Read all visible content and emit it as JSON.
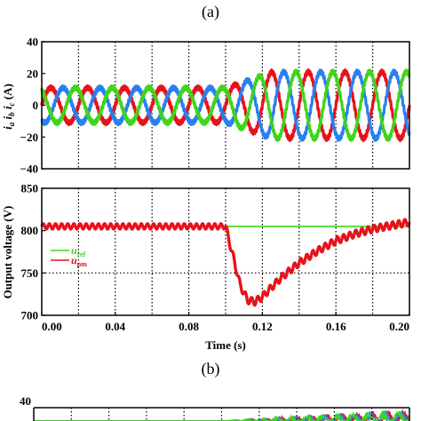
{
  "captions": {
    "top": "(a)",
    "middle": "(b)"
  },
  "chart_data": [
    {
      "id": "currents",
      "type": "line",
      "ylabel": "i_a  i_b  i_c (A)",
      "ylabel_parts": {
        "i1": "i",
        "s1": "a",
        "i2": "i",
        "s2": "b",
        "i3": "i",
        "s3": "c",
        "unit": "(A)"
      },
      "xlim": [
        0,
        0.2
      ],
      "ylim": [
        -40,
        40
      ],
      "yticks": [
        "40",
        "20",
        "0",
        "−20",
        "−40"
      ],
      "grid": "dotted-vertical",
      "series": [
        {
          "phase_deg": 0,
          "color": "#e8121b"
        },
        {
          "phase_deg": -120,
          "color": "#2a7ff0"
        },
        {
          "phase_deg": 120,
          "color": "#3fd51a"
        }
      ],
      "amplitude_before": 11,
      "amplitude_after": 21,
      "step_time": 0.1,
      "settle_time": 0.125,
      "frequency_hz": 50
    },
    {
      "id": "voltage",
      "type": "line",
      "ylabel": "Output voltage (V)",
      "xlabel": "Time (s)",
      "xlim": [
        0,
        0.2
      ],
      "ylim": [
        700,
        850
      ],
      "yticks": [
        "850",
        "800",
        "750",
        "700"
      ],
      "xticks": [
        "0.00",
        "0.04",
        "0.08",
        "0.12",
        "0.16",
        "0.20"
      ],
      "grid": "dotted-vertical",
      "hline_dotted": 750,
      "legend": {
        "placement": "left",
        "items": [
          {
            "base": "u",
            "sub": "ref",
            "color": "#3fd51a"
          },
          {
            "base": "u",
            "sub": "pm",
            "color": "#e8121b"
          }
        ]
      },
      "series": [
        {
          "name": "u_ref",
          "color": "#3fd51a",
          "x": [
            0,
            0.2
          ],
          "values": [
            805,
            805
          ]
        },
        {
          "name": "u_pm",
          "color": "#e8121b",
          "x": [
            0,
            0.1,
            0.104,
            0.108,
            0.112,
            0.116,
            0.12,
            0.13,
            0.14,
            0.15,
            0.16,
            0.17,
            0.18,
            0.19,
            0.2
          ],
          "values": [
            805,
            805,
            770,
            735,
            718,
            716,
            722,
            744,
            762,
            776,
            788,
            796,
            802,
            806,
            810
          ]
        }
      ]
    },
    {
      "id": "partial",
      "type": "line",
      "ylim_top": "40",
      "description_colors": [
        "#e8121b",
        "#2a7ff0",
        "#3fd51a"
      ]
    }
  ]
}
